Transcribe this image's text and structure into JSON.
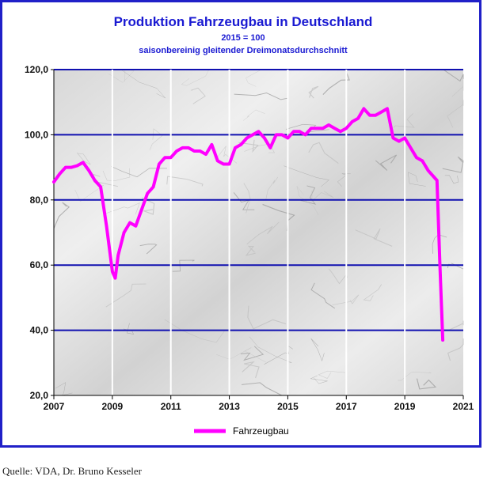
{
  "chart_data": {
    "type": "line",
    "title": "Produktion Fahrzeugbau in Deutschland",
    "subtitle": "2015 = 100",
    "subtitle2": "saisonbereinig gleitender Dreimonatsdurchschnitt",
    "ylim": [
      20,
      120
    ],
    "xlim": [
      2007,
      2021
    ],
    "yticks": [
      {
        "value": 20,
        "label": "20,0"
      },
      {
        "value": 40,
        "label": "40,0"
      },
      {
        "value": 60,
        "label": "60,0"
      },
      {
        "value": 80,
        "label": "80,0"
      },
      {
        "value": 100,
        "label": "100,0"
      },
      {
        "value": 120,
        "label": "120,0"
      }
    ],
    "xticks": [
      {
        "value": 2007,
        "label": "2007"
      },
      {
        "value": 2009,
        "label": "2009"
      },
      {
        "value": 2011,
        "label": "2011"
      },
      {
        "value": 2013,
        "label": "2013"
      },
      {
        "value": 2015,
        "label": "2015"
      },
      {
        "value": 2017,
        "label": "2017"
      },
      {
        "value": 2019,
        "label": "2019"
      },
      {
        "value": 2021,
        "label": "2021"
      }
    ],
    "grid": true,
    "legend_position": "bottom-center",
    "series": [
      {
        "name": "Fahrzeugbau",
        "color": "#ff00ff",
        "x": [
          2007.0,
          2007.2,
          2007.4,
          2007.6,
          2007.8,
          2008.0,
          2008.2,
          2008.4,
          2008.6,
          2008.8,
          2009.0,
          2009.1,
          2009.2,
          2009.4,
          2009.6,
          2009.8,
          2010.0,
          2010.2,
          2010.4,
          2010.6,
          2010.8,
          2011.0,
          2011.2,
          2011.4,
          2011.6,
          2011.8,
          2012.0,
          2012.2,
          2012.4,
          2012.6,
          2012.8,
          2013.0,
          2013.2,
          2013.4,
          2013.6,
          2013.8,
          2014.0,
          2014.2,
          2014.4,
          2014.6,
          2014.8,
          2015.0,
          2015.2,
          2015.4,
          2015.6,
          2015.8,
          2016.0,
          2016.2,
          2016.4,
          2016.6,
          2016.8,
          2017.0,
          2017.2,
          2017.4,
          2017.6,
          2017.8,
          2018.0,
          2018.2,
          2018.4,
          2018.6,
          2018.8,
          2019.0,
          2019.2,
          2019.4,
          2019.6,
          2019.8,
          2020.0,
          2020.1,
          2020.2,
          2020.3
        ],
        "values": [
          85.5,
          88,
          90,
          90,
          90.5,
          91.5,
          89,
          86,
          84,
          72,
          58,
          56,
          63,
          70,
          73,
          72,
          77,
          82,
          84,
          91,
          93,
          93,
          95,
          96,
          96,
          95,
          95,
          94,
          97,
          92,
          91,
          91,
          96,
          97,
          99,
          100,
          101,
          99,
          96,
          100,
          100,
          99,
          101,
          101,
          100,
          102,
          102,
          102,
          103,
          102,
          101,
          102,
          104,
          105,
          108,
          106,
          106,
          107,
          108,
          99,
          98,
          99,
          96,
          93,
          92,
          89,
          87,
          86,
          60,
          37
        ]
      }
    ]
  },
  "source_note": "Quelle: VDA, Dr. Bruno Kesseler"
}
